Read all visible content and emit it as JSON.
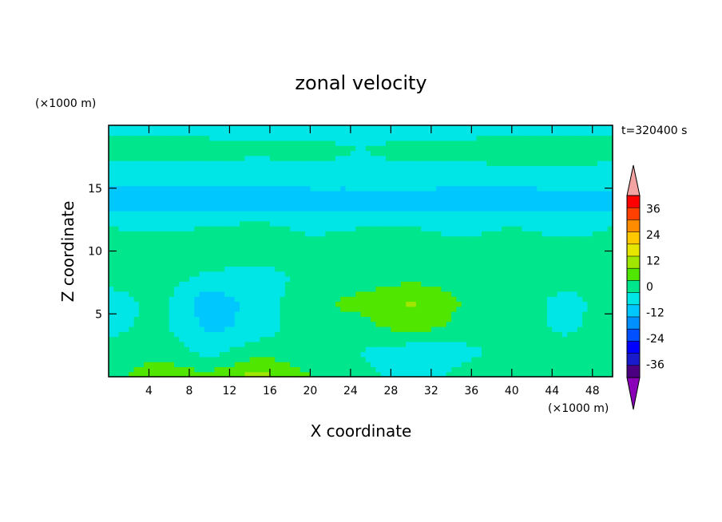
{
  "chart_data": {
    "type": "heatmap",
    "title": "zonal velocity",
    "xlabel": "X coordinate",
    "ylabel": "Z coordinate",
    "x_unit": "(×1000 m)",
    "y_unit": "(×1000 m)",
    "time_label": "t=320400 s",
    "xlim": [
      0,
      50
    ],
    "ylim": [
      0,
      20
    ],
    "x_ticks": [
      4,
      8,
      12,
      16,
      20,
      24,
      28,
      32,
      36,
      40,
      44,
      48
    ],
    "y_ticks": [
      5,
      10,
      15
    ],
    "colorbar": {
      "levels": [
        -42,
        -36,
        -30,
        -24,
        -18,
        -12,
        -6,
        0,
        6,
        12,
        18,
        24,
        30,
        36,
        42
      ],
      "colors": [
        "#4b0082",
        "#1a1acd",
        "#0000ff",
        "#0050ff",
        "#0090ff",
        "#00c8ff",
        "#00e6e6",
        "#00e68c",
        "#50e600",
        "#a0e600",
        "#e6e600",
        "#ffc800",
        "#ff8c00",
        "#ff4000",
        "#ff0000"
      ],
      "under_color": "#8a00b8",
      "over_color": "#f4a3a3",
      "tick_labels": [
        "36",
        "24",
        "12",
        "0",
        "-12",
        "-24",
        "-36"
      ]
    },
    "field": {
      "description_values_m_per_s": {
        "z_0_2_bands": "slightly positive 0..12 with local maxima ~12-18 near x=14",
        "z_2_10": "mixed -6..12, positive lobes near x=28 (~12), negative near x=10 (~-12)",
        "z_10_12": "0..6",
        "z_12_16": "-12..-6",
        "z_16_20": "0..6"
      },
      "grid_x": [
        0,
        5,
        10,
        15,
        20,
        25,
        30,
        35,
        40,
        45,
        50
      ],
      "grid_z": [
        0,
        2,
        4,
        6,
        8,
        10,
        12,
        14,
        16,
        18,
        20
      ],
      "values": [
        [
          4,
          10,
          8,
          15,
          6,
          2,
          -3,
          2,
          4,
          2,
          3
        ],
        [
          2,
          4,
          -2,
          4,
          2,
          0,
          -4,
          -2,
          2,
          4,
          2
        ],
        [
          -2,
          2,
          -8,
          -4,
          6,
          4,
          9,
          4,
          6,
          -2,
          3
        ],
        [
          -3,
          2,
          -10,
          -3,
          4,
          8,
          13,
          6,
          4,
          -2,
          2
        ],
        [
          2,
          4,
          -2,
          -3,
          2,
          2,
          4,
          2,
          6,
          2,
          3
        ],
        [
          4,
          6,
          6,
          4,
          4,
          2,
          4,
          2,
          4,
          2,
          2
        ],
        [
          0,
          -2,
          0,
          2,
          -2,
          0,
          0,
          -2,
          0,
          -2,
          0
        ],
        [
          -9,
          -10,
          -10,
          -11,
          -10,
          -9,
          -9,
          -10,
          -10,
          -9,
          -9
        ],
        [
          -3,
          -4,
          -3,
          -3,
          -2,
          -3,
          -2,
          -3,
          -3,
          -2,
          -3
        ],
        [
          2,
          4,
          2,
          1,
          2,
          0,
          2,
          2,
          4,
          4,
          2
        ],
        [
          -2,
          -3,
          -2,
          -2,
          -3,
          -2,
          -3,
          -3,
          -2,
          -3,
          -2
        ]
      ]
    }
  }
}
